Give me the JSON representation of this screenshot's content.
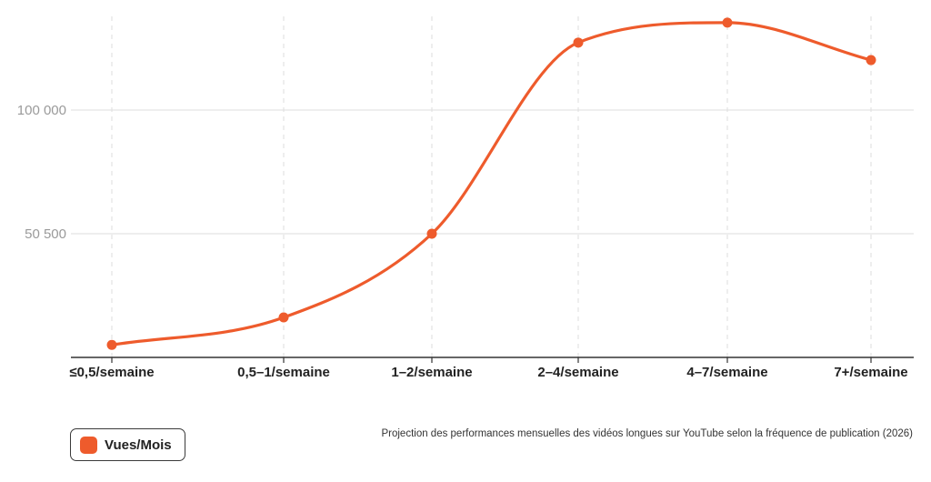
{
  "colors": {
    "series": "#ee5b2c",
    "grid": "#dddddd",
    "axis": "#333333"
  },
  "legend": {
    "label": "Vues/Mois"
  },
  "caption": "Projection des performances mensuelles des vidéos longues sur YouTube selon la fréquence de publication (2026)",
  "chart_data": {
    "type": "line",
    "title": "",
    "xlabel": "",
    "ylabel": "",
    "categories": [
      "≤0,5/semaine",
      "0,5–1/semaine",
      "1–2/semaine",
      "2–4/semaine",
      "4–7/semaine",
      "7+/semaine"
    ],
    "y_ticks": [
      50500,
      100000
    ],
    "y_tick_labels": [
      "50 500",
      "100 000"
    ],
    "ylim": [
      0,
      137000
    ],
    "series": [
      {
        "name": "Vues/Mois",
        "values": [
          6000,
          17000,
          50500,
          127000,
          135000,
          120000
        ]
      }
    ],
    "grid": {
      "horizontal": true,
      "vertical_dashed": true
    },
    "legend_position": "bottom-left",
    "curve": "smooth"
  }
}
